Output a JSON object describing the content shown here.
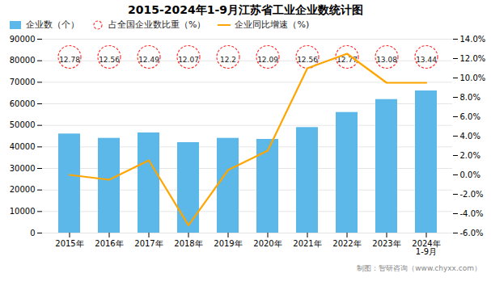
{
  "chart_data": {
    "type": "bar",
    "title": "2015-2024年1-9月江苏省工业企业数统计图",
    "caption": "制图：智研咨询（www.chyxx.com）",
    "categories": [
      "2015年",
      "2016年",
      "2017年",
      "2018年",
      "2019年",
      "2020年",
      "2021年",
      "2022年",
      "2023年",
      "2024年\n1-9月"
    ],
    "series": [
      {
        "name": "企业数（个）",
        "type": "bar",
        "color": "#5bb8e8",
        "values": [
          46000,
          44000,
          46500,
          42000,
          44000,
          43500,
          49000,
          56000,
          62000,
          66000
        ]
      },
      {
        "name": "占全国企业数比重（%）",
        "type": "text",
        "color": "#FF3333",
        "marker": "circle",
        "line_style": "dashed",
        "values": [
          12.78,
          12.56,
          12.49,
          12.07,
          12.2,
          12.09,
          12.56,
          12.77,
          13.08,
          13.44
        ]
      },
      {
        "name": "企业同比增速（%)",
        "type": "line",
        "axis": "y2",
        "color": "#FFA500",
        "values": [
          0.0,
          -0.5,
          1.5,
          -5.2,
          0.5,
          2.5,
          11.0,
          12.5,
          9.5,
          9.5
        ]
      }
    ],
    "ylim": [
      0,
      90000
    ],
    "yticks": [
      0,
      10000,
      20000,
      30000,
      40000,
      50000,
      60000,
      70000,
      80000,
      90000
    ],
    "y2lim": [
      -6.0,
      14.0
    ],
    "y2ticks": [
      {
        "value": -6.0,
        "label": "-6.0%"
      },
      {
        "value": -4.0,
        "label": "-4.0%"
      },
      {
        "value": -2.0,
        "label": "-2.0%"
      },
      {
        "value": 0.0,
        "label": "0.0%"
      },
      {
        "value": 2.0,
        "label": "2.0%"
      },
      {
        "value": 4.0,
        "label": "4.0%"
      },
      {
        "value": 6.0,
        "label": "6.0%"
      },
      {
        "value": 8.0,
        "label": "8.0%"
      },
      {
        "value": 10.0,
        "label": "10.0%"
      },
      {
        "value": 12.0,
        "label": "12.0%"
      },
      {
        "value": 14.0,
        "label": "14.0%"
      }
    ],
    "grid": true,
    "legend": "top"
  }
}
